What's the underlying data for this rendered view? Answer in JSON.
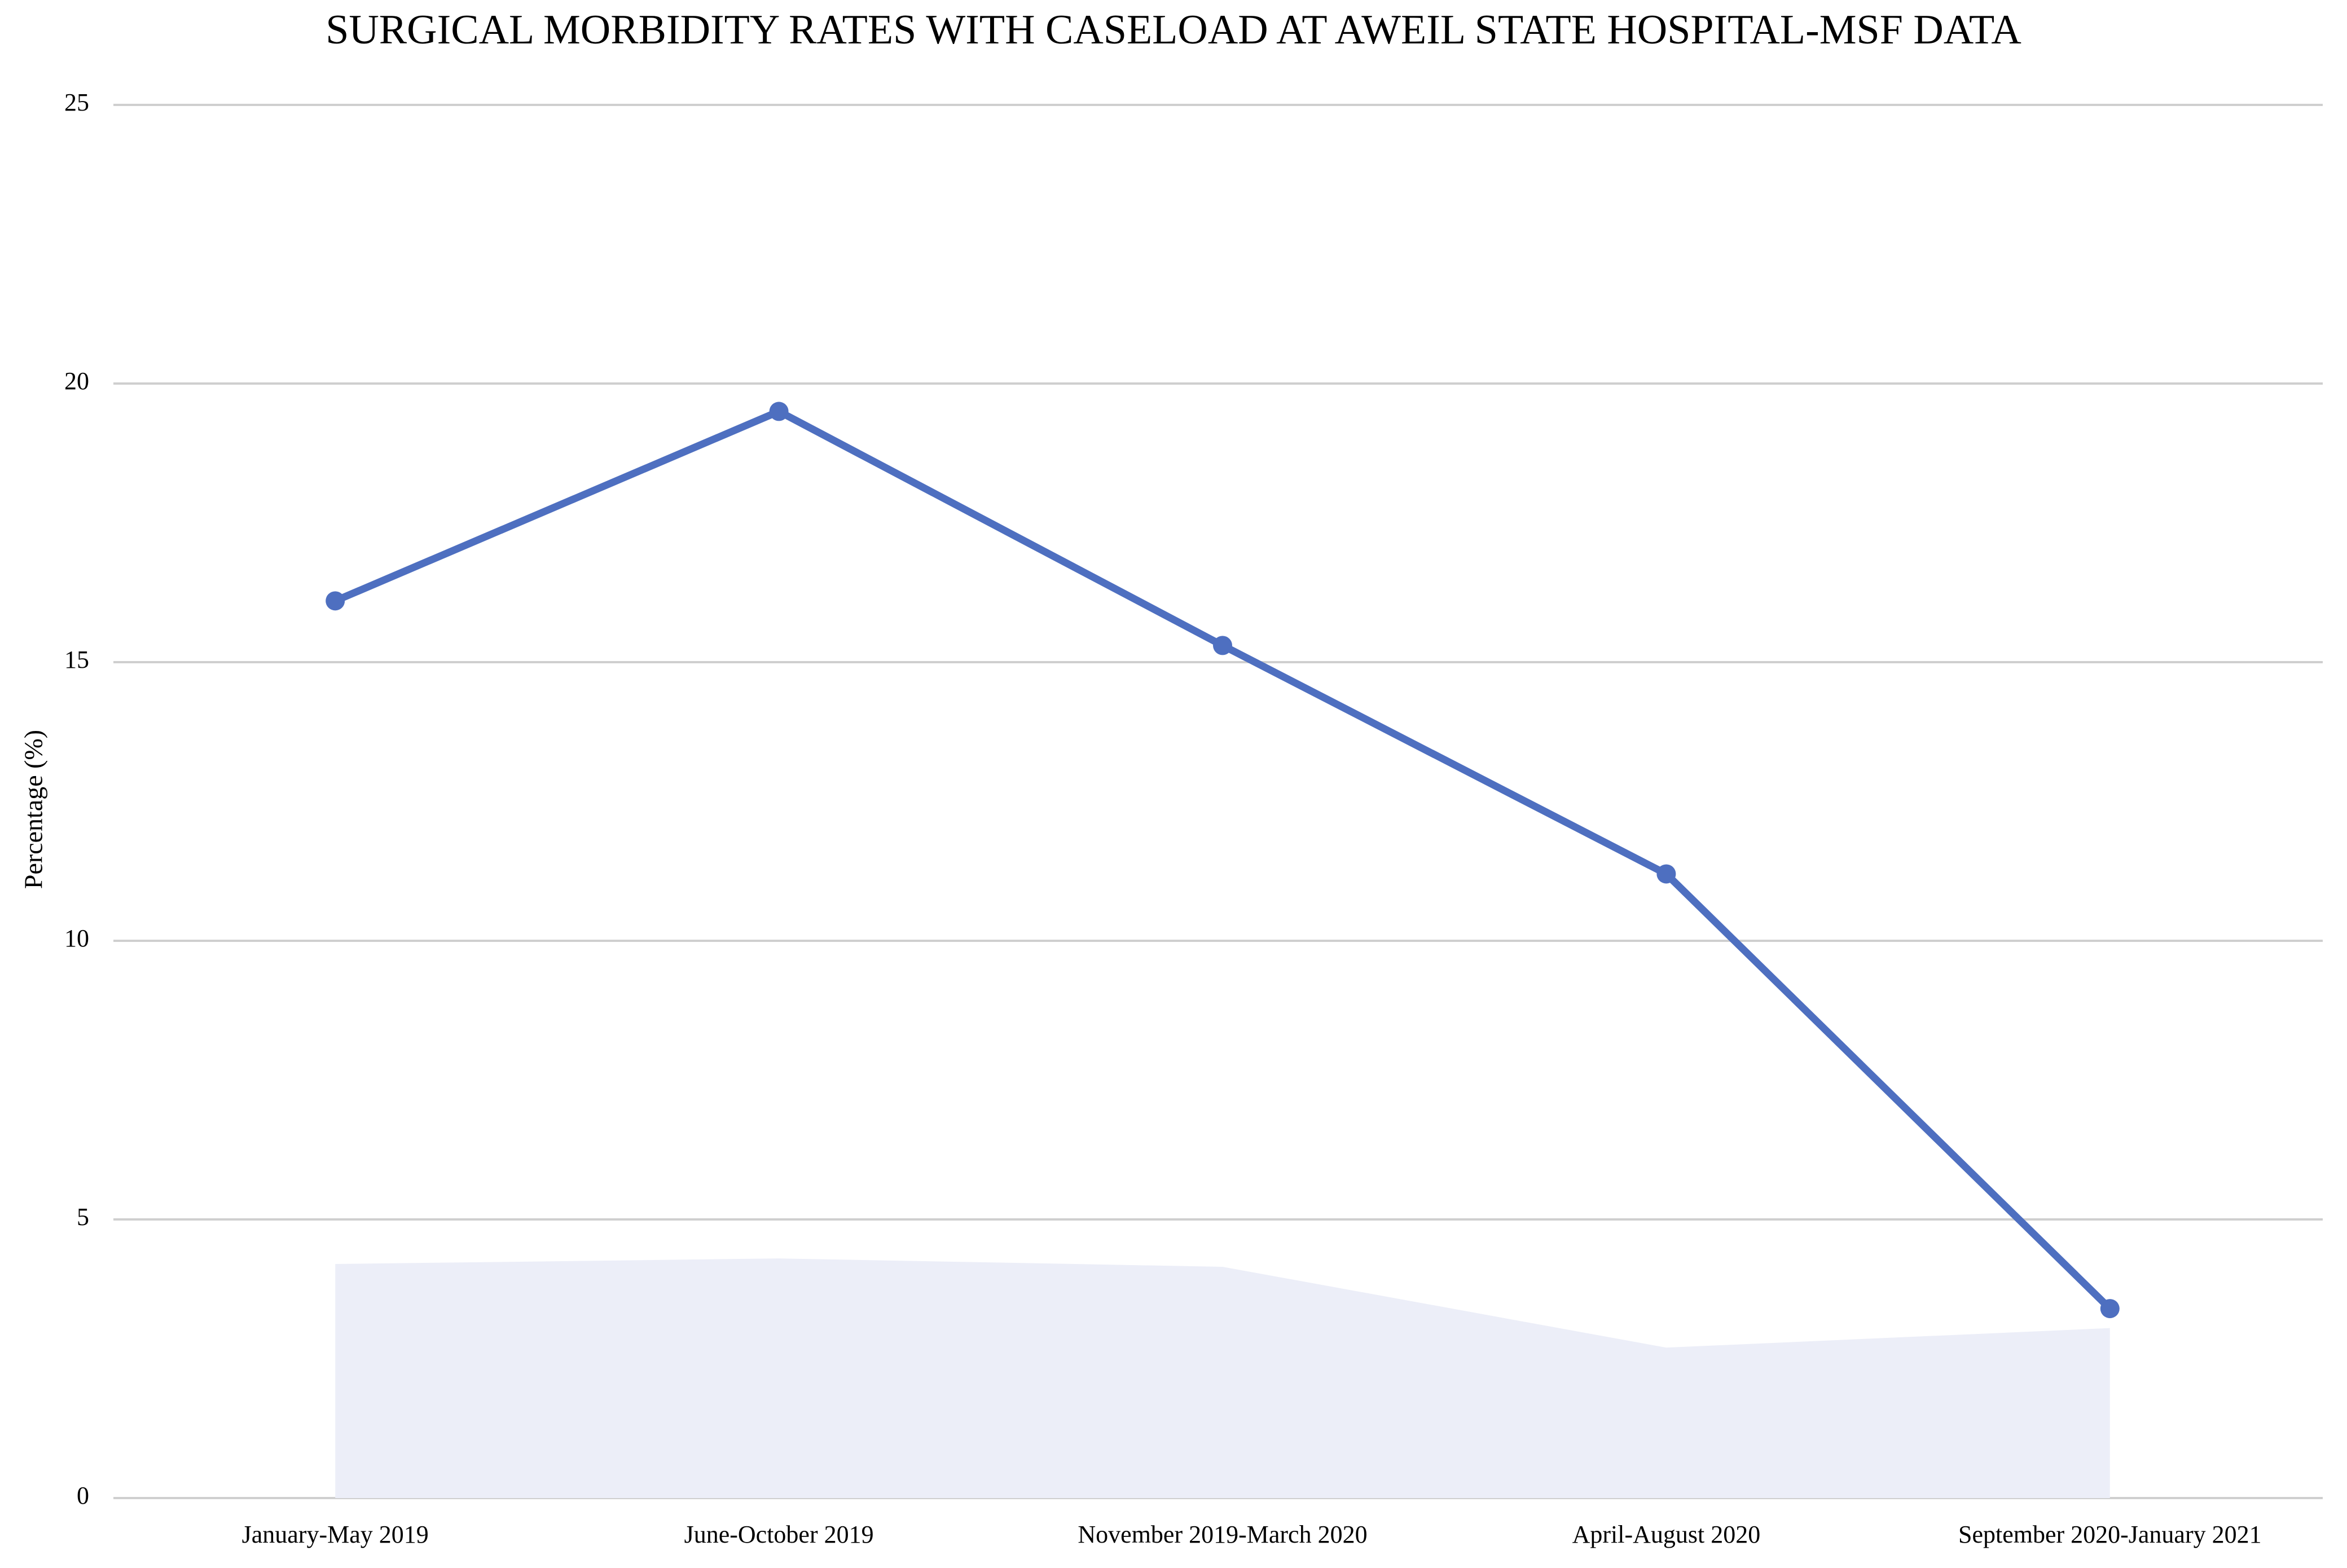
{
  "chart_data": {
    "type": "line",
    "title": "SURGICAL MORBIDITY RATES WITH CASELOAD AT AWEIL STATE HOSPITAL-MSF DATA",
    "y_label": "Percentage (%)",
    "categories": [
      "January-May 2019",
      "June-October 2019",
      "November 2019-March 2020",
      "April-August 2020",
      "September 2020-January 2021"
    ],
    "series": [
      {
        "type": "area",
        "color": "#eceef8",
        "values": [
          4.2,
          4.3,
          4.15,
          2.7,
          3.05
        ]
      },
      {
        "type": "line",
        "color": "#4e6fc0",
        "values": [
          16.1,
          19.5,
          15.3,
          11.2,
          3.4
        ]
      }
    ],
    "ylim": [
      0,
      25
    ],
    "yticks": [
      0,
      5,
      10,
      15,
      20,
      25
    ],
    "grid": true
  }
}
